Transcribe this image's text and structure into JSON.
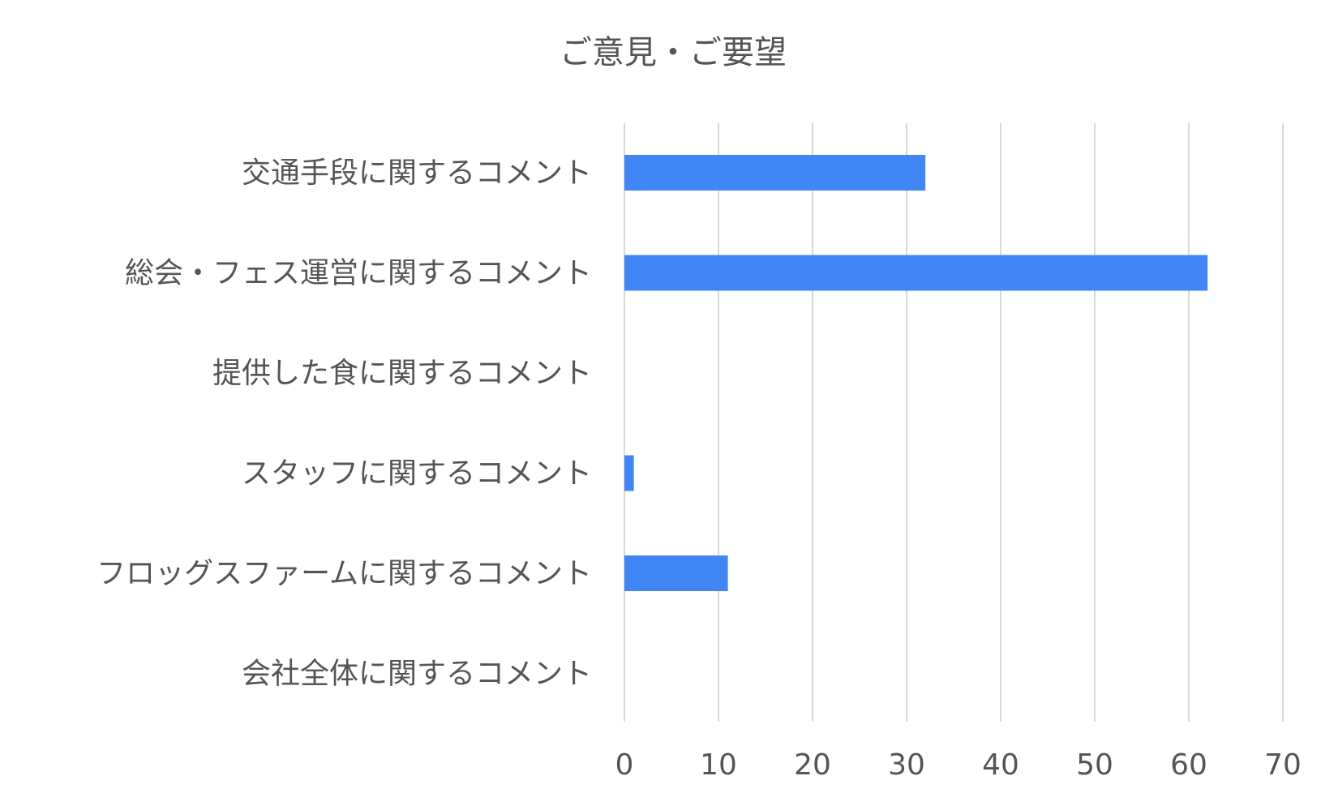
{
  "chart_data": {
    "type": "bar",
    "orientation": "horizontal",
    "title": "ご意見・ご要望",
    "categories": [
      "交通手段に関するコメント",
      "総会・フェス運営に関するコメント",
      "提供した食に関するコメント",
      "スタッフに関するコメント",
      "フロッグスファームに関するコメント",
      "会社全体に関するコメント"
    ],
    "values": [
      32,
      62,
      0,
      1,
      11,
      0
    ],
    "xlabel": "",
    "ylabel": "",
    "xlim": [
      0,
      70
    ],
    "xticks": [
      "0",
      "10",
      "20",
      "30",
      "40",
      "50",
      "60",
      "70"
    ],
    "grid": true,
    "legend": "none",
    "bar_color": "#4285f4"
  }
}
